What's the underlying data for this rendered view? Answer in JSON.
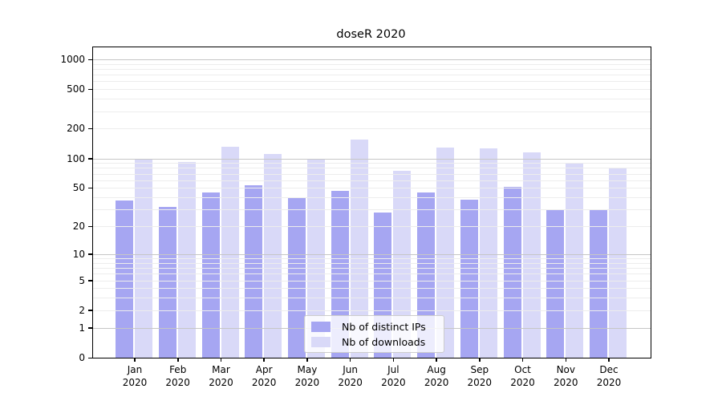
{
  "chart_data": {
    "type": "bar",
    "title": "doseR 2020",
    "categories": [
      "Jan",
      "Feb",
      "Mar",
      "Apr",
      "May",
      "Jun",
      "Jul",
      "Aug",
      "Sep",
      "Oct",
      "Nov",
      "Dec"
    ],
    "category_year": "2020",
    "series": [
      {
        "name": "Nb of distinct IPs",
        "color": "#a6a6f2",
        "values": [
          37,
          32,
          45,
          53,
          39,
          47,
          28,
          45,
          38,
          51,
          30,
          30
        ]
      },
      {
        "name": "Nb of downloads",
        "color": "#d9d9f8",
        "values": [
          100,
          92,
          131,
          111,
          97,
          155,
          75,
          129,
          127,
          115,
          90,
          81
        ]
      }
    ],
    "yscale": "log1p",
    "yticks": [
      1000,
      500,
      200,
      100,
      50,
      20,
      10,
      5,
      2,
      1,
      0
    ],
    "ylim": [
      0,
      1320
    ],
    "grid": true,
    "grid_major_values": [
      1,
      10,
      100,
      1000
    ],
    "grid_minor_multiples": [
      2,
      3,
      4,
      5,
      6,
      7,
      8,
      9
    ],
    "grid_minor_decades": [
      1,
      10,
      100
    ],
    "colors": {
      "grid_major": "#c6c6c6",
      "grid_minor": "#ededed",
      "axis": "#000000",
      "background": "#ffffff"
    },
    "legend_position": "lower center"
  }
}
